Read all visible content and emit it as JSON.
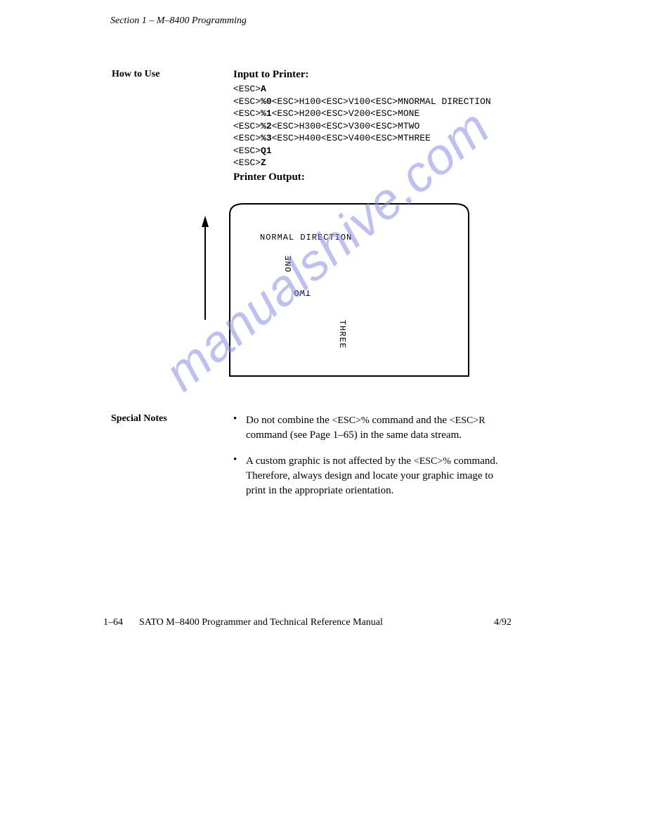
{
  "header": {
    "text": "Section 1 – M–8400 Programming"
  },
  "howto": {
    "label": "How to Use",
    "input_heading": "Input to Printer:",
    "output_heading": "Printer Output:",
    "code_lines": [
      {
        "pre": "<ESC>",
        "bold": "A",
        "post": ""
      },
      {
        "pre": "<ESC>",
        "bold": "%0",
        "post": "<ESC>H100<ESC>V100<ESC>MNORMAL DIRECTION"
      },
      {
        "pre": "<ESC>",
        "bold": "%1",
        "post": "<ESC>H200<ESC>V200<ESC>MONE"
      },
      {
        "pre": "<ESC>",
        "bold": "%2",
        "post": "<ESC>H300<ESC>V300<ESC>MTWO"
      },
      {
        "pre": "<ESC>",
        "bold": "%3",
        "post": "<ESC>H400<ESC>V400<ESC>MTHREE"
      },
      {
        "pre": "<ESC>",
        "bold": "Q1",
        "post": ""
      },
      {
        "pre": "<ESC>",
        "bold": "Z",
        "post": ""
      }
    ]
  },
  "diagram": {
    "labels": {
      "normal": "NORMAL DIRECTION",
      "one": "ONE",
      "two": "TWO",
      "three": "THREE"
    }
  },
  "notes": {
    "label": "Special Notes",
    "items": [
      {
        "pre": "Do not combine the ",
        "esc1": "<ESC>%",
        "mid": " command and the ",
        "esc2": "<ESC>R",
        "post": " command (see Page 1–65) in the same data stream."
      },
      {
        "pre": "A custom graphic is not affected by the ",
        "esc1": "<ESC>%",
        "mid": " command. Therefore, always design and locate your graphic image to print in the appropriate orientation.",
        "esc2": "",
        "post": ""
      }
    ]
  },
  "footer": {
    "page_num": "1–64",
    "title": "SATO M–8400 Programmer and Technical Reference Manual",
    "date": "4/92"
  },
  "watermark": {
    "text": "manualshive.com",
    "color": "#8a8ee8"
  }
}
